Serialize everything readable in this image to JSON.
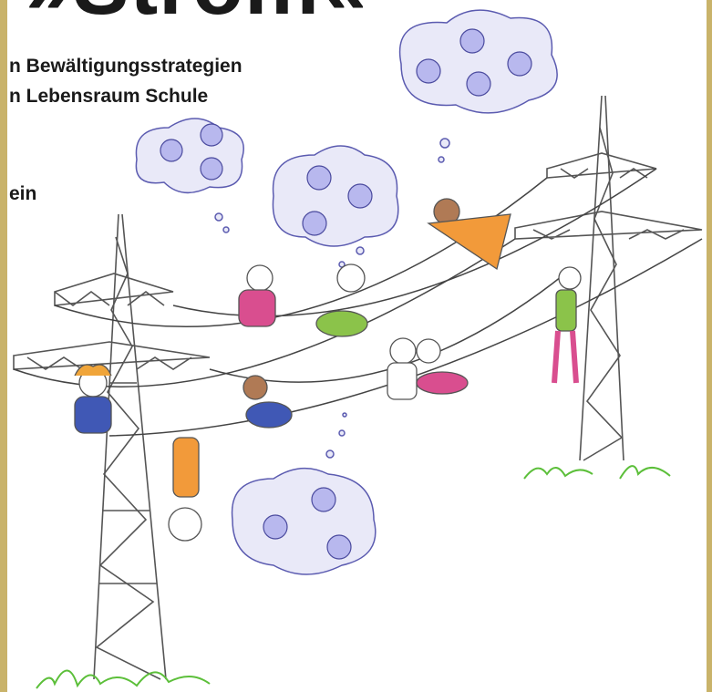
{
  "header": {
    "title": "»Strom«",
    "subtitle_lines": [
      "n Bewältigungsstrategien",
      "n Lebensraum Schule"
    ],
    "fragment": "ein"
  }
}
